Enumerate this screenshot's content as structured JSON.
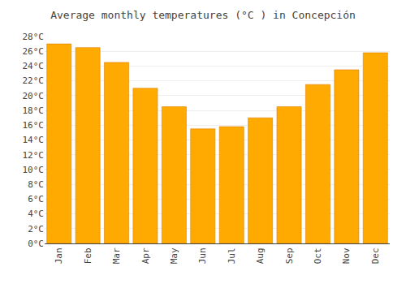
{
  "chart_data": {
    "type": "bar",
    "title": "Average monthly temperatures (°C ) in Concepción",
    "categories": [
      "Jan",
      "Feb",
      "Mar",
      "Apr",
      "May",
      "Jun",
      "Jul",
      "Aug",
      "Sep",
      "Oct",
      "Nov",
      "Dec"
    ],
    "values": [
      27,
      26.5,
      24.5,
      21,
      18.5,
      15.5,
      15.8,
      17,
      18.5,
      21.5,
      23.5,
      25.8
    ],
    "color": "#FFAA00",
    "ylim": [
      0,
      28
    ],
    "yticks": [
      {
        "value": 0,
        "label": "0°C"
      },
      {
        "value": 2,
        "label": "2°C"
      },
      {
        "value": 4,
        "label": "4°C"
      },
      {
        "value": 6,
        "label": "6°C"
      },
      {
        "value": 8,
        "label": "8°C"
      },
      {
        "value": 10,
        "label": "10°C"
      },
      {
        "value": 12,
        "label": "12°C"
      },
      {
        "value": 14,
        "label": "14°C"
      },
      {
        "value": 16,
        "label": "16°C"
      },
      {
        "value": 18,
        "label": "18°C"
      },
      {
        "value": 20,
        "label": "20°C"
      },
      {
        "value": 22,
        "label": "22°C"
      },
      {
        "value": 24,
        "label": "24°C"
      },
      {
        "value": 26,
        "label": "26°C"
      },
      {
        "value": 28,
        "label": "28°C"
      }
    ],
    "grid": true
  }
}
